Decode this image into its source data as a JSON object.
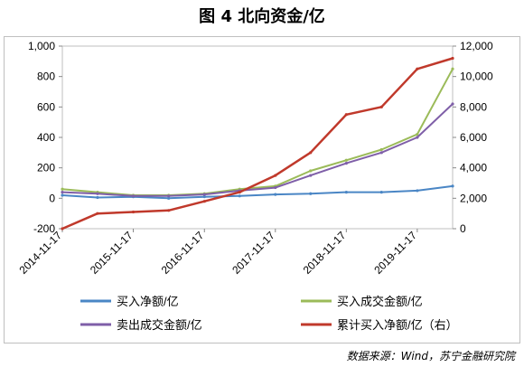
{
  "figure": {
    "title": "图 4  北向资金/亿",
    "source": "数据来源：Wind，苏宁金融研究院"
  },
  "chart_data": {
    "type": "line",
    "x": [
      "2014-11-17",
      "2015-05-17",
      "2015-11-17",
      "2016-05-17",
      "2016-11-17",
      "2017-05-17",
      "2017-11-17",
      "2018-05-17",
      "2018-11-17",
      "2019-05-17",
      "2019-11-17",
      "2020-05-17"
    ],
    "x_ticks": [
      "2014-11-17",
      "2015-11-17",
      "2016-11-17",
      "2017-11-17",
      "2018-11-17",
      "2019-11-17"
    ],
    "ylim_left": [
      -200,
      1000
    ],
    "yticks_left": [
      "-200",
      "0",
      "200",
      "400",
      "600",
      "800",
      "1,000"
    ],
    "ylim_right": [
      0,
      12000
    ],
    "yticks_right": [
      "0",
      "2,000",
      "4,000",
      "6,000",
      "8,000",
      "10,000",
      "12,000"
    ],
    "series": [
      {
        "name": "买入净额/亿",
        "axis": "left",
        "color": "#4a86c5",
        "values": [
          20,
          5,
          10,
          0,
          10,
          15,
          25,
          30,
          40,
          40,
          50,
          80
        ]
      },
      {
        "name": "买入成交金额/亿",
        "axis": "left",
        "color": "#9bbb59",
        "values": [
          60,
          40,
          20,
          20,
          30,
          60,
          80,
          180,
          250,
          320,
          420,
          850
        ]
      },
      {
        "name": "卖出成交金额/亿",
        "axis": "left",
        "color": "#7f5fa8",
        "values": [
          40,
          30,
          15,
          15,
          25,
          50,
          70,
          150,
          230,
          300,
          400,
          620
        ]
      },
      {
        "name": "累计买入净额/亿（右）",
        "axis": "right",
        "color": "#c0392b",
        "values": [
          0,
          1000,
          1100,
          1200,
          1800,
          2400,
          3500,
          5000,
          7500,
          8000,
          10500,
          11200
        ]
      }
    ]
  }
}
